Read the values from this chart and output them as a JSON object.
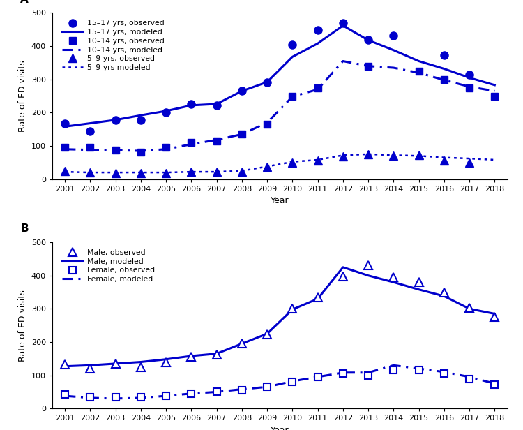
{
  "years": [
    2001,
    2002,
    2003,
    2004,
    2005,
    2006,
    2007,
    2008,
    2009,
    2010,
    2011,
    2012,
    2013,
    2014,
    2015,
    2016,
    2017,
    2018
  ],
  "panel_a": {
    "obs_15_17": [
      168,
      143,
      178,
      178,
      200,
      225,
      222,
      265,
      290,
      405,
      448,
      470,
      420,
      432,
      null,
      372,
      315,
      null
    ],
    "mod_15_17": [
      158,
      168,
      178,
      192,
      205,
      222,
      226,
      265,
      292,
      368,
      408,
      462,
      418,
      388,
      355,
      332,
      305,
      283
    ],
    "obs_10_14": [
      95,
      95,
      88,
      80,
      95,
      110,
      115,
      135,
      165,
      250,
      275,
      null,
      340,
      null,
      325,
      300,
      275,
      250
    ],
    "mod_10_14": [
      90,
      88,
      87,
      85,
      90,
      105,
      118,
      135,
      170,
      248,
      270,
      355,
      340,
      335,
      320,
      298,
      278,
      265
    ],
    "obs_5_9": [
      25,
      20,
      18,
      18,
      18,
      22,
      22,
      22,
      38,
      50,
      55,
      68,
      75,
      70,
      72,
      55,
      50,
      null
    ],
    "mod_5_9": [
      22,
      20,
      20,
      20,
      20,
      22,
      22,
      25,
      38,
      52,
      58,
      72,
      75,
      72,
      70,
      65,
      62,
      58
    ]
  },
  "panel_b": {
    "obs_male": [
      133,
      120,
      135,
      125,
      140,
      155,
      162,
      195,
      222,
      300,
      335,
      398,
      430,
      395,
      380,
      350,
      302,
      275
    ],
    "mod_male": [
      127,
      130,
      135,
      140,
      148,
      158,
      165,
      195,
      225,
      298,
      330,
      425,
      400,
      380,
      358,
      338,
      300,
      285
    ],
    "obs_female": [
      42,
      35,
      33,
      35,
      38,
      45,
      50,
      55,
      65,
      80,
      95,
      105,
      100,
      115,
      115,
      105,
      88,
      72
    ],
    "mod_female": [
      38,
      32,
      30,
      32,
      38,
      45,
      50,
      58,
      65,
      82,
      95,
      108,
      108,
      130,
      120,
      110,
      95,
      75
    ]
  },
  "color": "#0000CC",
  "ylabel": "Rate of ED visits",
  "xlabel": "Year",
  "ylim": [
    0,
    500
  ],
  "yticks": [
    0,
    100,
    200,
    300,
    400,
    500
  ],
  "panel_a_label": "A",
  "panel_b_label": "B"
}
